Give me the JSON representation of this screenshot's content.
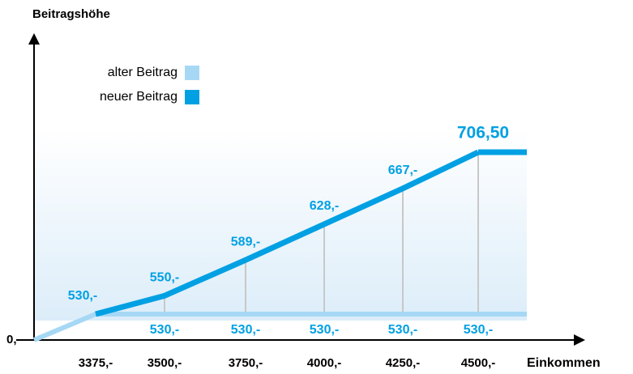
{
  "chart_data": {
    "type": "line",
    "y_axis_label": "Beitragshöhe",
    "x_axis_label": "Einkommen",
    "categories": [
      "3375,-",
      "3500,-",
      "3750,-",
      "4000,-",
      "4250,-",
      "4500,-"
    ],
    "yticks": [
      {
        "value": 0,
        "label": "0,-"
      }
    ],
    "legend": "top-left",
    "series": [
      {
        "name": "alter Beitrag",
        "color": "#a6d8f5",
        "values": [
          530,
          530,
          530,
          530,
          530,
          530
        ],
        "value_labels": [
          null,
          "530,-",
          "530,-",
          "530,-",
          "530,-",
          "530,-"
        ]
      },
      {
        "name": "neuer Beitrag",
        "color": "#00a0e3",
        "values": [
          530,
          550,
          589,
          628,
          667,
          706.5
        ],
        "value_labels": [
          "530,-",
          "550,-",
          "589,-",
          "628,-",
          "667,-",
          "706,50"
        ]
      }
    ]
  }
}
